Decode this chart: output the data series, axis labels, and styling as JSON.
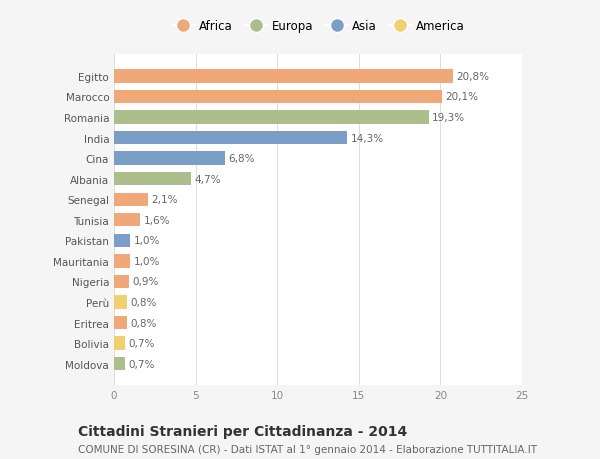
{
  "countries": [
    "Egitto",
    "Marocco",
    "Romania",
    "India",
    "Cina",
    "Albania",
    "Senegal",
    "Tunisia",
    "Pakistan",
    "Mauritania",
    "Nigeria",
    "Perù",
    "Eritrea",
    "Bolivia",
    "Moldova"
  ],
  "values": [
    20.8,
    20.1,
    19.3,
    14.3,
    6.8,
    4.7,
    2.1,
    1.6,
    1.0,
    1.0,
    0.9,
    0.8,
    0.8,
    0.7,
    0.7
  ],
  "continents": [
    "Africa",
    "Africa",
    "Europa",
    "Asia",
    "Asia",
    "Europa",
    "Africa",
    "Africa",
    "Asia",
    "Africa",
    "Africa",
    "America",
    "Africa",
    "America",
    "Europa"
  ],
  "colors": {
    "Africa": "#F0A878",
    "Europa": "#ABBE8C",
    "Asia": "#7B9EC8",
    "America": "#F0D070"
  },
  "xlim": [
    0,
    25
  ],
  "xticks": [
    0,
    5,
    10,
    15,
    20,
    25
  ],
  "title": "Cittadini Stranieri per Cittadinanza - 2014",
  "subtitle": "COMUNE DI SORESINA (CR) - Dati ISTAT al 1° gennaio 2014 - Elaborazione TUTTITALIA.IT",
  "bg_color": "#f5f5f5",
  "plot_bg_color": "#ffffff",
  "title_fontsize": 10,
  "subtitle_fontsize": 7.5,
  "label_fontsize": 7.5,
  "tick_fontsize": 7.5,
  "legend_fontsize": 8.5
}
